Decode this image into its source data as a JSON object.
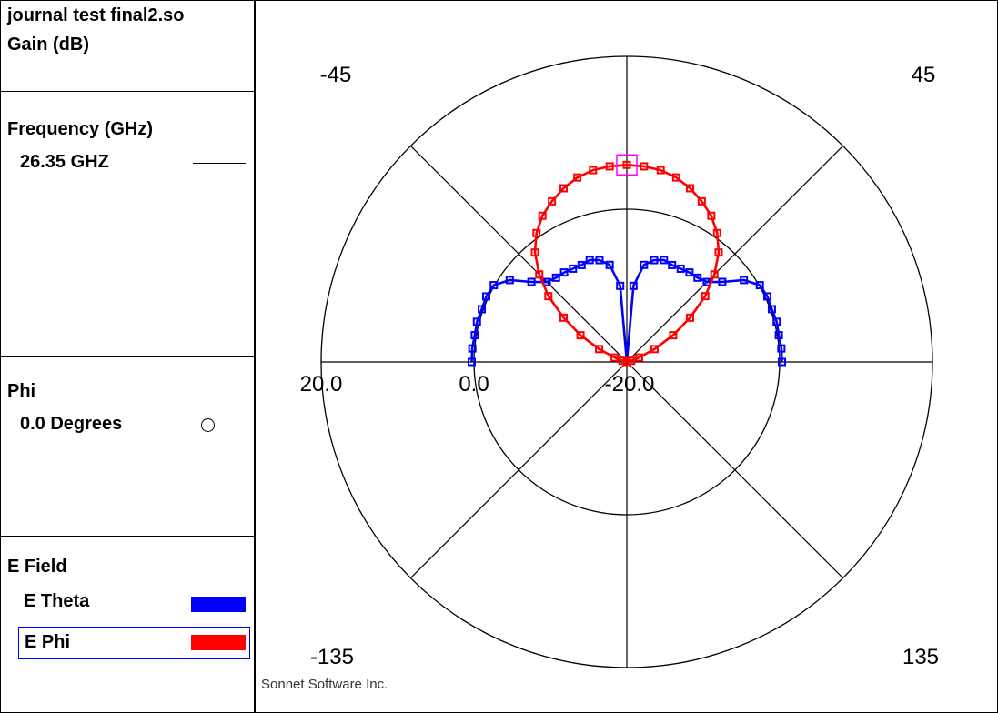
{
  "header": {
    "file_name": "journal test final2.so",
    "quantity": "Gain (dB)"
  },
  "frequency": {
    "heading": "Frequency (GHz)",
    "value": "26.35 GHZ"
  },
  "phi": {
    "heading": "Phi",
    "value": "0.0 Degrees"
  },
  "efield": {
    "heading": "E Field",
    "items": [
      {
        "label": "E Theta",
        "color": "#0000ff"
      },
      {
        "label": "E Phi",
        "color": "#ff0000"
      }
    ]
  },
  "angle_labels": {
    "top_left": "-45",
    "top_right": "45",
    "bottom_left": "-135",
    "bottom_right": "135"
  },
  "footer": "Sonnet Software Inc.",
  "chart_data": {
    "type": "polar",
    "radial_axis": {
      "range": [
        -20.0,
        20.0
      ],
      "ticks": [
        "20.0",
        "0.0",
        "-20.0"
      ]
    },
    "angular_axis": {
      "zero_at": "top",
      "direction": "clockwise",
      "range_deg": [
        -90,
        90
      ]
    },
    "colors": {
      "E Theta": "#0000ff",
      "E Phi": "#ff0000",
      "marker": "#ff00ff"
    },
    "series": [
      {
        "name": "E Theta",
        "theta_deg": [
          -90,
          -85,
          -80,
          -75,
          -70,
          -65,
          -60,
          -55,
          -50,
          -45,
          -40,
          -35,
          -30,
          -25,
          -20,
          -15,
          -10,
          -5,
          0,
          5,
          10,
          15,
          20,
          25,
          30,
          35,
          40,
          45,
          50,
          55,
          60,
          65,
          70,
          75,
          80,
          85,
          90
        ],
        "r_db": [
          0.3,
          0.3,
          0.2,
          0.3,
          0.2,
          0.3,
          0.1,
          -1.3,
          -3.7,
          -5.2,
          -5.6,
          -5.7,
          -5.9,
          -6.0,
          -5.8,
          -6.2,
          -7.1,
          -10.0,
          -20.0,
          -10.0,
          -7.1,
          -6.2,
          -5.8,
          -6.0,
          -5.9,
          -5.7,
          -5.6,
          -5.2,
          -3.7,
          -1.3,
          0.1,
          0.3,
          0.2,
          0.3,
          0.2,
          0.3,
          0.3
        ]
      },
      {
        "name": "E Phi",
        "theta_deg": [
          -90,
          -85,
          -80,
          -75,
          -70,
          -65,
          -60,
          -55,
          -50,
          -45,
          -40,
          -35,
          -30,
          -25,
          -20,
          -15,
          -10,
          -5,
          0,
          5,
          10,
          15,
          20,
          25,
          30,
          35,
          40,
          45,
          50,
          55,
          60,
          65,
          70,
          75,
          80,
          85,
          90
        ],
        "r_db": [
          -20.0,
          -20.0,
          -20.0,
          -19.4,
          -18.3,
          -16.0,
          -13.0,
          -9.9,
          -6.6,
          -3.8,
          -1.3,
          0.6,
          2.1,
          3.2,
          4.2,
          5.0,
          5.5,
          5.7,
          5.8,
          5.7,
          5.5,
          5.0,
          4.2,
          3.2,
          2.1,
          0.6,
          -1.3,
          -3.8,
          -6.6,
          -9.9,
          -13.0,
          -16.0,
          -18.3,
          -19.4,
          -20.0,
          -20.0,
          -20.0
        ]
      }
    ],
    "marker": {
      "series": "E Phi",
      "theta_deg": 0,
      "r_db": 5.8
    }
  }
}
